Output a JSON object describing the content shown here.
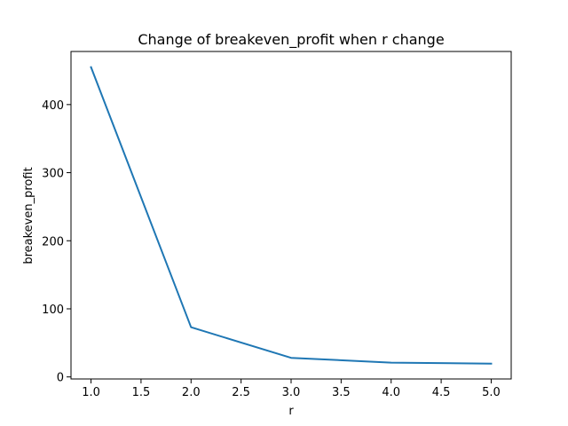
{
  "chart_data": {
    "type": "line",
    "title": "Change of breakeven_profit when r change",
    "xlabel": "r",
    "ylabel": "breakeven_profit",
    "x": [
      1.0,
      2.0,
      3.0,
      4.0,
      5.0
    ],
    "series": [
      {
        "values": [
          455,
          73,
          28,
          21,
          19.5
        ],
        "color": "#1f77b4"
      }
    ],
    "xlim": [
      0.8,
      5.2
    ],
    "ylim": [
      -3,
      478
    ],
    "xticks": [
      1.0,
      1.5,
      2.0,
      2.5,
      3.0,
      3.5,
      4.0,
      4.5,
      5.0
    ],
    "xtick_labels": [
      "1.0",
      "1.5",
      "2.0",
      "2.5",
      "3.0",
      "3.5",
      "4.0",
      "4.5",
      "5.0"
    ],
    "yticks": [
      0,
      100,
      200,
      300,
      400
    ],
    "ytick_labels": [
      "0",
      "100",
      "200",
      "300",
      "400"
    ],
    "grid": false,
    "legend": "none"
  }
}
